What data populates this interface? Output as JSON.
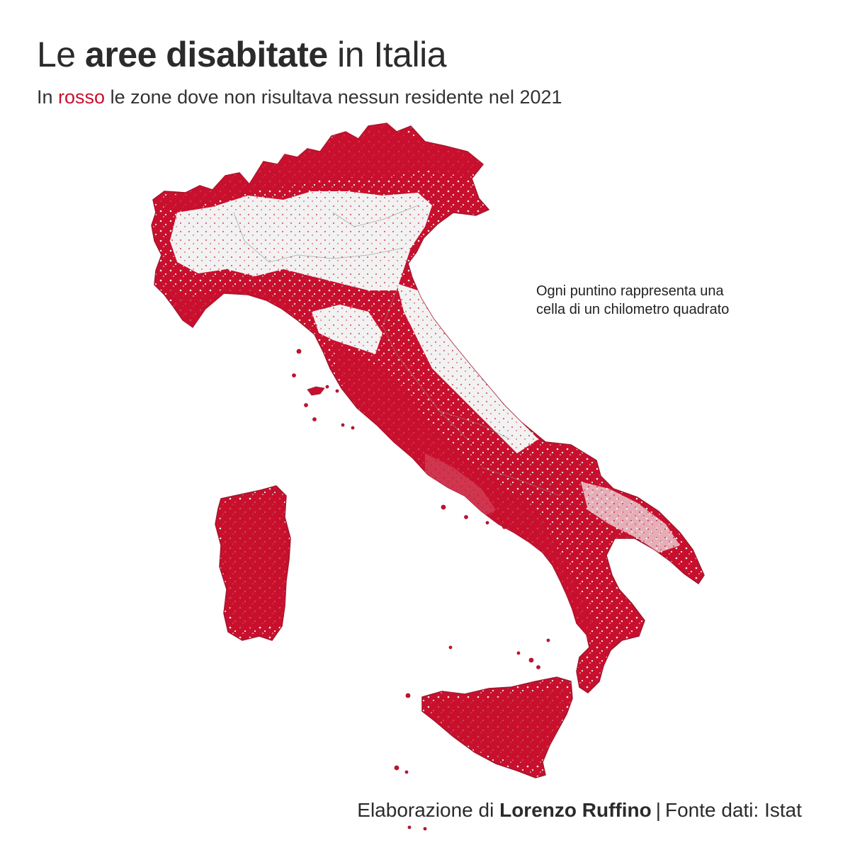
{
  "title": {
    "part1": "Le ",
    "bold": "aree disabitate",
    "part2": " in Italia"
  },
  "subtitle": {
    "part1": "In ",
    "highlight": "rosso",
    "part2": " le zone dove non risultava nessun residente nel 2021"
  },
  "annotation": "Ogni puntino rappresenta una cella di un chilometro quadrato",
  "credit": {
    "part1": "Elaborazione di ",
    "author": "Lorenzo Ruffino",
    "separator": "|",
    "source": "Fonte dati: Istat"
  },
  "colors": {
    "uninhabited": "#c8102e",
    "inhabited": "#f2f2f2",
    "border": "#9a9a9a",
    "text": "#2b2b2b"
  },
  "map": {
    "regions": [
      "alps",
      "po-valley",
      "peninsula",
      "apulia",
      "calabria",
      "sicily",
      "sardinia",
      "small-islands"
    ]
  }
}
